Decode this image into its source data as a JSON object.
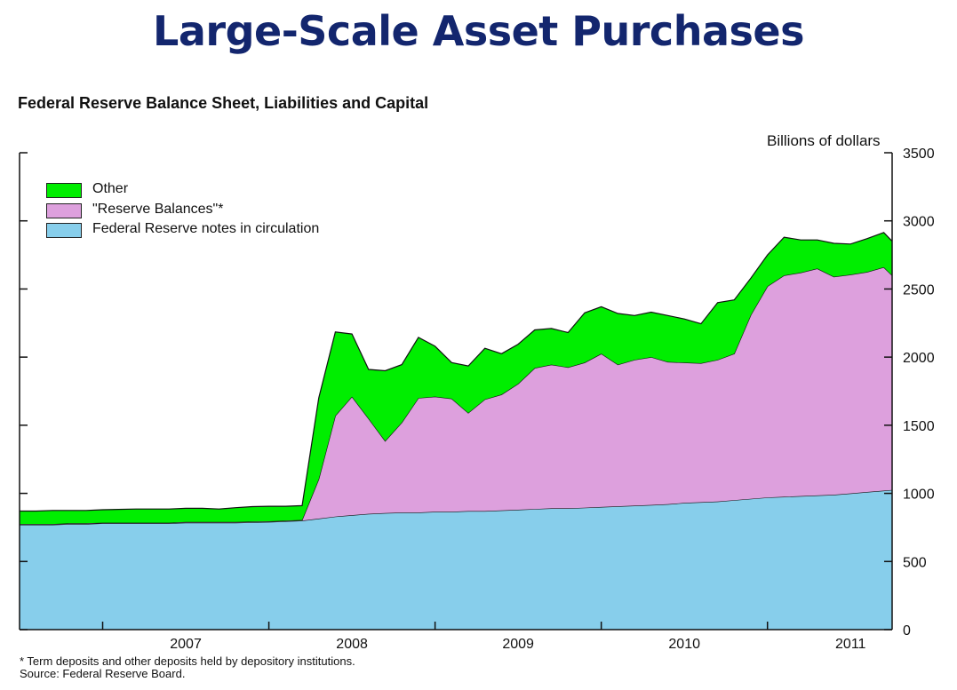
{
  "slide": {
    "title": "Large-Scale Asset Purchases"
  },
  "chart_data": {
    "type": "area",
    "stacked": true,
    "title": "Federal Reserve Balance Sheet, Liabilities and Capital",
    "ylabel": "Billions of dollars",
    "xlabel": "",
    "ylim": [
      0,
      3500
    ],
    "xlim": [
      2006.5,
      2011.75
    ],
    "yticks": [
      0,
      500,
      1000,
      1500,
      2000,
      2500,
      3000,
      3500
    ],
    "xtick_labels": [
      "2007",
      "2008",
      "2009",
      "2010",
      "2011"
    ],
    "xtick_positions": [
      2007.5,
      2008.5,
      2009.5,
      2010.5,
      2011.5
    ],
    "year_boundaries": [
      2007,
      2008,
      2009,
      2010,
      2011
    ],
    "legend_position": "top-left",
    "x": [
      2006.5,
      2006.6,
      2006.7,
      2006.8,
      2006.9,
      2007.0,
      2007.2,
      2007.4,
      2007.5,
      2007.6,
      2007.7,
      2007.8,
      2007.9,
      2008.0,
      2008.1,
      2008.2,
      2008.3,
      2008.4,
      2008.5,
      2008.6,
      2008.7,
      2008.8,
      2008.9,
      2009.0,
      2009.1,
      2009.2,
      2009.3,
      2009.4,
      2009.5,
      2009.6,
      2009.7,
      2009.8,
      2009.9,
      2010.0,
      2010.1,
      2010.2,
      2010.3,
      2010.4,
      2010.5,
      2010.6,
      2010.7,
      2010.8,
      2010.9,
      2011.0,
      2011.1,
      2011.2,
      2011.3,
      2011.4,
      2011.5,
      2011.6,
      2011.7,
      2011.75
    ],
    "series": [
      {
        "name": "Federal Reserve notes in circulation",
        "color": "#87ceeb",
        "values": [
          770,
          770,
          770,
          775,
          775,
          780,
          780,
          780,
          785,
          785,
          785,
          785,
          788,
          790,
          795,
          800,
          815,
          830,
          840,
          850,
          855,
          860,
          860,
          865,
          865,
          870,
          870,
          875,
          880,
          885,
          890,
          890,
          895,
          900,
          905,
          910,
          915,
          920,
          930,
          935,
          940,
          950,
          960,
          970,
          975,
          980,
          985,
          990,
          1000,
          1010,
          1020,
          1025
        ]
      },
      {
        "name": "\"Reserve Balances\"*",
        "color": "#dda0dd",
        "values": [
          5,
          5,
          5,
          5,
          5,
          5,
          5,
          5,
          5,
          5,
          5,
          5,
          5,
          5,
          5,
          5,
          290,
          740,
          870,
          700,
          530,
          660,
          840,
          845,
          830,
          720,
          820,
          850,
          925,
          1035,
          1055,
          1035,
          1065,
          1125,
          1040,
          1070,
          1085,
          1045,
          1030,
          1020,
          1040,
          1075,
          1350,
          1550,
          1625,
          1640,
          1665,
          1600,
          1605,
          1615,
          1640,
          1575
        ]
      },
      {
        "name": "Other",
        "color": "#00ee00",
        "values": [
          95,
          95,
          100,
          95,
          95,
          95,
          100,
          100,
          100,
          100,
          95,
          105,
          110,
          110,
          105,
          105,
          595,
          615,
          460,
          360,
          515,
          425,
          445,
          370,
          265,
          345,
          375,
          300,
          290,
          280,
          265,
          255,
          365,
          345,
          375,
          325,
          330,
          340,
          320,
          290,
          420,
          395,
          270,
          230,
          280,
          240,
          210,
          245,
          225,
          245,
          255,
          250
        ]
      }
    ],
    "legend_entries": [
      "Other",
      "\"Reserve Balances\"*",
      "Federal Reserve notes in circulation"
    ],
    "legend_colors": [
      "#00ee00",
      "#dda0dd",
      "#87ceeb"
    ],
    "footnote": "* Term deposits and other deposits held by depository institutions.",
    "source": "Source: Federal Reserve Board."
  }
}
